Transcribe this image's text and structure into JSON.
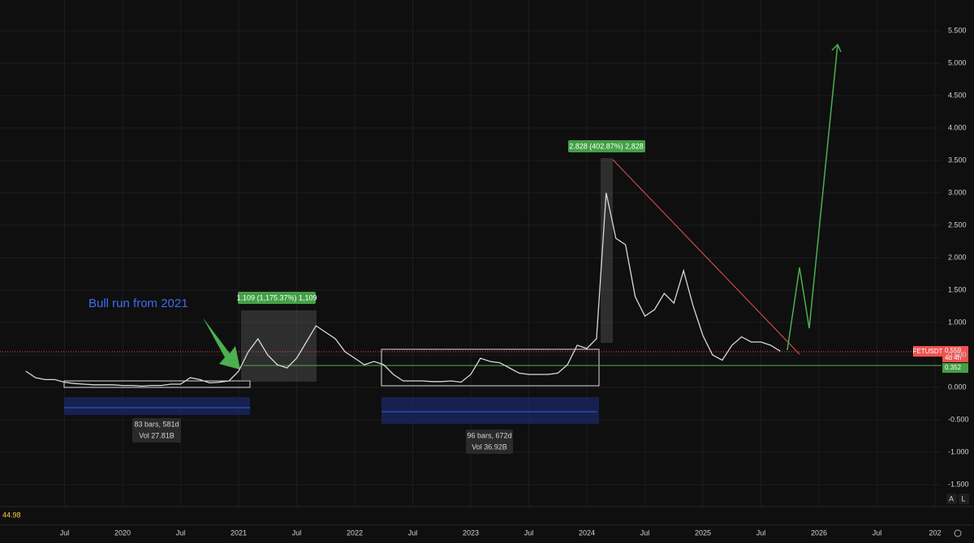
{
  "chart_data": {
    "type": "line",
    "symbol": "FETUSDT",
    "x": [
      "2019-03",
      "2019-04",
      "2019-05",
      "2019-06",
      "2019-07",
      "2019-08",
      "2019-09",
      "2019-10",
      "2019-11",
      "2019-12",
      "2020-01",
      "2020-02",
      "2020-03",
      "2020-04",
      "2020-05",
      "2020-06",
      "2020-07",
      "2020-08",
      "2020-09",
      "2020-10",
      "2020-11",
      "2020-12",
      "2021-01",
      "2021-02",
      "2021-03",
      "2021-04",
      "2021-05",
      "2021-06",
      "2021-07",
      "2021-08",
      "2021-09",
      "2021-10",
      "2021-11",
      "2021-12",
      "2022-01",
      "2022-02",
      "2022-03",
      "2022-04",
      "2022-05",
      "2022-06",
      "2022-07",
      "2022-08",
      "2022-09",
      "2022-10",
      "2022-11",
      "2022-12",
      "2023-01",
      "2023-02",
      "2023-03",
      "2023-04",
      "2023-05",
      "2023-06",
      "2023-07",
      "2023-08",
      "2023-09",
      "2023-10",
      "2023-11",
      "2023-12",
      "2024-01",
      "2024-02",
      "2024-03",
      "2024-04",
      "2024-05",
      "2024-06",
      "2024-07",
      "2024-08",
      "2024-09",
      "2024-10",
      "2024-11",
      "2024-12",
      "2025-01",
      "2025-02",
      "2025-03",
      "2025-04",
      "2025-05",
      "2025-06",
      "2025-07",
      "2025-08",
      "2025-09"
    ],
    "series": [
      {
        "name": "FETUSDT",
        "color": "#d9d9d9",
        "values": [
          0.25,
          0.15,
          0.12,
          0.12,
          0.08,
          0.06,
          0.05,
          0.04,
          0.04,
          0.04,
          0.03,
          0.03,
          0.02,
          0.03,
          0.03,
          0.05,
          0.05,
          0.15,
          0.12,
          0.07,
          0.08,
          0.1,
          0.25,
          0.55,
          0.75,
          0.5,
          0.35,
          0.3,
          0.45,
          0.7,
          0.95,
          0.85,
          0.75,
          0.55,
          0.45,
          0.35,
          0.4,
          0.35,
          0.2,
          0.1,
          0.1,
          0.1,
          0.09,
          0.09,
          0.1,
          0.08,
          0.2,
          0.45,
          0.4,
          0.38,
          0.3,
          0.22,
          0.2,
          0.2,
          0.2,
          0.22,
          0.35,
          0.65,
          0.6,
          0.75,
          3.0,
          2.3,
          2.2,
          1.4,
          1.1,
          1.2,
          1.45,
          1.3,
          1.8,
          1.25,
          0.8,
          0.5,
          0.42,
          0.65,
          0.78,
          0.7,
          0.7,
          0.65,
          0.559
        ]
      }
    ],
    "ylim": [
      -1.8375,
      5.975
    ],
    "yticks": [
      {
        "value": -1.5,
        "label": "-1.500"
      },
      {
        "value": -1,
        "label": "-1.000"
      },
      {
        "value": -0.5,
        "label": "-0.500"
      },
      {
        "value": 0,
        "label": "0.000"
      },
      {
        "value": 0.5,
        "label": "0.500"
      },
      {
        "value": 1,
        "label": "1.000"
      },
      {
        "value": 1.5,
        "label": "1.500"
      },
      {
        "value": 2,
        "label": "2.000"
      },
      {
        "value": 2.5,
        "label": "2.500"
      },
      {
        "value": 3,
        "label": "3.000"
      },
      {
        "value": 3.5,
        "label": "3.500"
      },
      {
        "value": 4,
        "label": "4.000"
      },
      {
        "value": 4.5,
        "label": "4.500"
      },
      {
        "value": 5,
        "label": "5.000"
      },
      {
        "value": 5.5,
        "label": "5.500"
      }
    ],
    "xticks": [
      {
        "value": "2019-07",
        "label": "Jul"
      },
      {
        "value": "2020-01",
        "label": "2020"
      },
      {
        "value": "2020-07",
        "label": "Jul"
      },
      {
        "value": "2021-01",
        "label": "2021"
      },
      {
        "value": "2021-07",
        "label": "Jul"
      },
      {
        "value": "2022-01",
        "label": "2022"
      },
      {
        "value": "2022-07",
        "label": "Jul"
      },
      {
        "value": "2023-01",
        "label": "2023"
      },
      {
        "value": "2023-07",
        "label": "Jul"
      },
      {
        "value": "2024-01",
        "label": "2024"
      },
      {
        "value": "2024-07",
        "label": "Jul"
      },
      {
        "value": "2025-01",
        "label": "2025"
      },
      {
        "value": "2025-07",
        "label": "Jul"
      },
      {
        "value": "2026-01",
        "label": "2026"
      },
      {
        "value": "2026-07",
        "label": "Jul"
      },
      {
        "value": "2027-01",
        "label": "202"
      }
    ],
    "grid": true,
    "annotations": {
      "bull": "Bull run from 2021",
      "measure1": "1.109 (1,175.37%) 1,109",
      "measure2": "2.828 (402.87%) 2,828",
      "range1_bars": "83 bars, 581d",
      "range1_vol": "Vol 27.81B",
      "range2_bars": "96 bars, 672d",
      "range2_vol": "Vol 36.92B",
      "price_label": "0.559",
      "countdown": "4d 4h",
      "level_label": "0.352",
      "indicator": "44.98",
      "btn_a": "A",
      "btn_l": "L"
    }
  }
}
